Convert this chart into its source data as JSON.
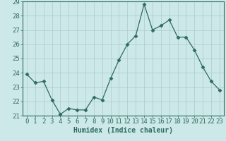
{
  "x": [
    0,
    1,
    2,
    3,
    4,
    5,
    6,
    7,
    8,
    9,
    10,
    11,
    12,
    13,
    14,
    15,
    16,
    17,
    18,
    19,
    20,
    21,
    22,
    23
  ],
  "y": [
    23.9,
    23.3,
    23.4,
    22.1,
    21.1,
    21.5,
    21.4,
    21.4,
    22.3,
    22.1,
    23.6,
    24.9,
    26.0,
    26.6,
    28.8,
    27.0,
    27.3,
    27.7,
    26.5,
    26.5,
    25.6,
    24.4,
    23.4,
    22.8
  ],
  "xlabel": "Humidex (Indice chaleur)",
  "ylim": [
    21,
    29
  ],
  "yticks": [
    21,
    22,
    23,
    24,
    25,
    26,
    27,
    28,
    29
  ],
  "xlim": [
    -0.5,
    23.5
  ],
  "line_color": "#2e6b5e",
  "marker": "D",
  "marker_size": 2.5,
  "bg_color": "#cce8e8",
  "grid_color": "#aacccc",
  "tick_label_color": "#2e6b5e",
  "xlabel_fontsize": 7,
  "tick_fontsize": 6.5
}
